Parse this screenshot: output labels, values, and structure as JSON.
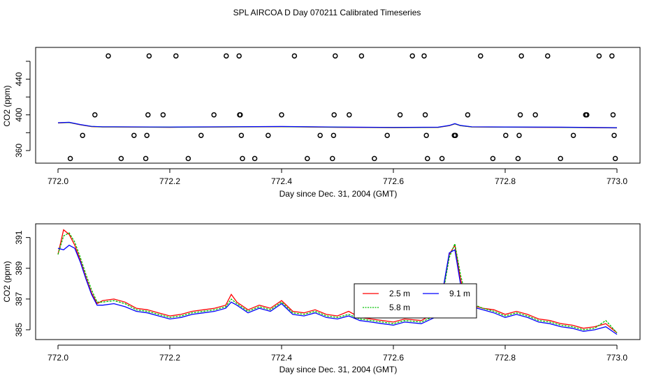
{
  "title": "SPL AIRCOA D  Day 070211  Calibrated Timeseries",
  "colors": {
    "series_2_5": "#ff0000",
    "series_5_8": "#00c000",
    "series_9_1": "#0000ff",
    "axis": "#000000"
  },
  "chart_data": [
    {
      "type": "scatter",
      "panel": "top",
      "xlabel": "Day since Dec. 31, 2004 (GMT)",
      "ylabel": "CO2 (ppm)",
      "xlim": [
        772.0,
        773.0
      ],
      "ylim": [
        349,
        474
      ],
      "xticks": [
        "772.0",
        "772.2",
        "772.4",
        "772.6",
        "772.8",
        "773.0"
      ],
      "yticks": [
        "360",
        "400",
        "440"
      ],
      "points": [
        {
          "x": 772.022,
          "y": 351
        },
        {
          "x": 772.044,
          "y": 377
        },
        {
          "x": 772.066,
          "y": 400
        },
        {
          "x": 772.09,
          "y": 466
        },
        {
          "x": 772.113,
          "y": 351
        },
        {
          "x": 772.136,
          "y": 377
        },
        {
          "x": 772.157,
          "y": 351
        },
        {
          "x": 772.159,
          "y": 377
        },
        {
          "x": 772.161,
          "y": 400
        },
        {
          "x": 772.163,
          "y": 466
        },
        {
          "x": 772.188,
          "y": 400
        },
        {
          "x": 772.211,
          "y": 466
        },
        {
          "x": 772.233,
          "y": 351
        },
        {
          "x": 772.256,
          "y": 377
        },
        {
          "x": 772.279,
          "y": 400
        },
        {
          "x": 772.301,
          "y": 466
        },
        {
          "x": 772.324,
          "y": 466
        },
        {
          "x": 772.325,
          "y": 400
        },
        {
          "x": 772.326,
          "y": 400
        },
        {
          "x": 772.328,
          "y": 377
        },
        {
          "x": 772.33,
          "y": 351
        },
        {
          "x": 772.352,
          "y": 351
        },
        {
          "x": 772.376,
          "y": 377
        },
        {
          "x": 772.4,
          "y": 400
        },
        {
          "x": 772.423,
          "y": 466
        },
        {
          "x": 772.446,
          "y": 351
        },
        {
          "x": 772.469,
          "y": 377
        },
        {
          "x": 772.491,
          "y": 351
        },
        {
          "x": 772.493,
          "y": 377
        },
        {
          "x": 772.494,
          "y": 400
        },
        {
          "x": 772.496,
          "y": 466
        },
        {
          "x": 772.521,
          "y": 400
        },
        {
          "x": 772.543,
          "y": 466
        },
        {
          "x": 772.566,
          "y": 351
        },
        {
          "x": 772.589,
          "y": 377
        },
        {
          "x": 772.612,
          "y": 400
        },
        {
          "x": 772.634,
          "y": 466
        },
        {
          "x": 772.655,
          "y": 466
        },
        {
          "x": 772.657,
          "y": 400
        },
        {
          "x": 772.659,
          "y": 377
        },
        {
          "x": 772.661,
          "y": 351
        },
        {
          "x": 772.687,
          "y": 351
        },
        {
          "x": 772.709,
          "y": 377
        },
        {
          "x": 772.711,
          "y": 377
        },
        {
          "x": 772.733,
          "y": 400
        },
        {
          "x": 772.756,
          "y": 466
        },
        {
          "x": 772.778,
          "y": 351
        },
        {
          "x": 772.801,
          "y": 377
        },
        {
          "x": 772.823,
          "y": 351
        },
        {
          "x": 772.825,
          "y": 377
        },
        {
          "x": 772.827,
          "y": 400
        },
        {
          "x": 772.829,
          "y": 466
        },
        {
          "x": 772.854,
          "y": 400
        },
        {
          "x": 772.876,
          "y": 466
        },
        {
          "x": 772.899,
          "y": 351
        },
        {
          "x": 772.922,
          "y": 377
        },
        {
          "x": 772.944,
          "y": 400
        },
        {
          "x": 772.946,
          "y": 400
        },
        {
          "x": 772.968,
          "y": 466
        },
        {
          "x": 772.991,
          "y": 466
        },
        {
          "x": 772.993,
          "y": 400
        },
        {
          "x": 772.995,
          "y": 377
        },
        {
          "x": 772.997,
          "y": 351
        }
      ],
      "line": {
        "x": [
          772.0,
          772.02,
          772.04,
          772.06,
          772.08,
          772.1,
          772.2,
          772.3,
          772.4,
          772.5,
          772.6,
          772.68,
          772.7,
          772.71,
          772.72,
          772.74,
          772.8,
          772.9,
          773.0
        ],
        "y": [
          391,
          391.5,
          389,
          387,
          386.5,
          386.5,
          386.2,
          386.5,
          386.8,
          386.2,
          385.8,
          386,
          388,
          390,
          388,
          386.5,
          386.3,
          386,
          385.5
        ]
      }
    },
    {
      "type": "line",
      "panel": "bottom",
      "xlabel": "Day since Dec. 31, 2004 (GMT)",
      "ylabel": "CO2 (ppm)",
      "xlim": [
        772.0,
        773.0
      ],
      "ylim": [
        384.5,
        391.8
      ],
      "xticks": [
        "772.0",
        "772.2",
        "772.4",
        "772.6",
        "772.8",
        "773.0"
      ],
      "yticks": [
        "385",
        "387",
        "389",
        "391"
      ],
      "legend": {
        "position": "center-right",
        "entries": [
          "2.5 m",
          "5.8 m",
          "9.1 m"
        ]
      },
      "x": [
        772.0,
        772.01,
        772.02,
        772.03,
        772.04,
        772.05,
        772.06,
        772.07,
        772.08,
        772.1,
        772.12,
        772.14,
        772.16,
        772.18,
        772.2,
        772.22,
        772.24,
        772.26,
        772.28,
        772.3,
        772.31,
        772.32,
        772.34,
        772.36,
        772.38,
        772.4,
        772.42,
        772.44,
        772.46,
        772.48,
        772.5,
        772.52,
        772.54,
        772.56,
        772.58,
        772.6,
        772.62,
        772.65,
        772.68,
        772.69,
        772.7,
        772.71,
        772.72,
        772.73,
        772.74,
        772.76,
        772.78,
        772.8,
        772.82,
        772.84,
        772.86,
        772.88,
        772.9,
        772.92,
        772.94,
        772.96,
        772.98,
        773.0
      ],
      "series": [
        {
          "name": "2.5 m",
          "values": [
            389.9,
            391.5,
            391.2,
            390.5,
            389.5,
            388.4,
            387.4,
            386.7,
            386.9,
            387.0,
            386.8,
            386.4,
            386.3,
            386.1,
            385.9,
            386.0,
            386.2,
            386.3,
            386.4,
            386.6,
            387.3,
            386.8,
            386.3,
            386.6,
            386.4,
            386.9,
            386.2,
            386.1,
            386.3,
            386.0,
            385.9,
            386.2,
            385.8,
            385.7,
            385.6,
            385.5,
            385.7,
            385.6,
            386.2,
            387.8,
            389.9,
            390.5,
            388.3,
            386.9,
            386.6,
            386.4,
            386.3,
            386.0,
            386.2,
            386.0,
            385.7,
            385.6,
            385.4,
            385.3,
            385.1,
            385.2,
            385.4,
            384.8
          ]
        },
        {
          "name": "5.8 m",
          "values": [
            389.9,
            391.1,
            391.3,
            390.7,
            389.7,
            388.6,
            387.6,
            386.8,
            386.8,
            386.9,
            386.7,
            386.3,
            386.2,
            386.0,
            385.8,
            385.9,
            386.1,
            386.2,
            386.3,
            386.5,
            387.0,
            386.7,
            386.2,
            386.5,
            386.3,
            386.8,
            386.1,
            386.0,
            386.2,
            385.9,
            385.8,
            386.0,
            385.7,
            385.6,
            385.5,
            385.4,
            385.6,
            385.5,
            386.0,
            387.6,
            389.7,
            390.6,
            388.6,
            387.1,
            386.7,
            386.4,
            386.2,
            385.9,
            386.1,
            385.9,
            385.6,
            385.5,
            385.3,
            385.2,
            385.0,
            385.1,
            385.6,
            384.8
          ]
        },
        {
          "name": "9.1 m",
          "values": [
            390.3,
            390.2,
            390.5,
            390.3,
            389.4,
            388.3,
            387.3,
            386.6,
            386.6,
            386.7,
            386.5,
            386.2,
            386.1,
            385.9,
            385.7,
            385.8,
            386.0,
            386.1,
            386.2,
            386.4,
            386.8,
            386.6,
            386.1,
            386.4,
            386.2,
            386.7,
            386.0,
            385.9,
            386.1,
            385.8,
            385.7,
            385.9,
            385.6,
            385.5,
            385.4,
            385.3,
            385.5,
            385.4,
            385.9,
            387.9,
            390.0,
            390.2,
            388.0,
            386.8,
            386.5,
            386.3,
            386.1,
            385.8,
            386.0,
            385.8,
            385.5,
            385.4,
            385.2,
            385.1,
            384.9,
            385.0,
            385.2,
            384.7
          ]
        }
      ]
    }
  ]
}
